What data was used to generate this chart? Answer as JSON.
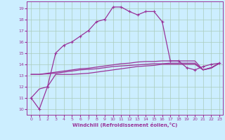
{
  "xlabel": "Windchill (Refroidissement éolien,°C)",
  "bg_color": "#cceeff",
  "line_color": "#993399",
  "grid_color": "#aaccbb",
  "xlim": [
    -0.5,
    23.4
  ],
  "ylim": [
    9.5,
    19.6
  ],
  "yticks": [
    10,
    11,
    12,
    13,
    14,
    15,
    16,
    17,
    18,
    19
  ],
  "xticks": [
    0,
    1,
    2,
    3,
    4,
    5,
    6,
    7,
    8,
    9,
    10,
    11,
    12,
    13,
    14,
    15,
    16,
    17,
    18,
    19,
    20,
    21,
    22,
    23
  ],
  "line1_x": [
    0,
    1,
    2,
    3,
    4,
    5,
    6,
    7,
    8,
    9,
    10,
    11,
    12,
    13,
    14,
    15,
    16,
    17,
    18,
    19,
    20,
    21,
    22,
    23
  ],
  "line1_y": [
    11.0,
    10.0,
    12.0,
    15.0,
    15.7,
    16.0,
    16.5,
    17.0,
    17.8,
    18.0,
    19.1,
    19.1,
    18.7,
    18.4,
    18.7,
    18.7,
    17.8,
    14.3,
    14.3,
    13.7,
    13.5,
    13.8,
    14.0,
    14.1
  ],
  "line2_x": [
    0,
    1,
    2,
    3,
    4,
    5,
    6,
    7,
    8,
    9,
    10,
    11,
    12,
    13,
    14,
    15,
    16,
    17,
    18,
    19,
    20,
    21,
    22,
    23
  ],
  "line2_y": [
    13.1,
    13.1,
    13.15,
    13.2,
    13.3,
    13.4,
    13.5,
    13.55,
    13.6,
    13.7,
    13.8,
    13.85,
    13.9,
    13.95,
    14.0,
    14.05,
    14.05,
    14.1,
    14.1,
    14.1,
    14.1,
    13.5,
    13.7,
    14.1
  ],
  "line3_x": [
    0,
    1,
    2,
    3,
    4,
    5,
    6,
    7,
    8,
    9,
    10,
    11,
    12,
    13,
    14,
    15,
    16,
    17,
    18,
    19,
    20,
    21,
    22,
    23
  ],
  "line3_y": [
    13.1,
    13.1,
    13.2,
    13.3,
    13.4,
    13.5,
    13.6,
    13.65,
    13.75,
    13.85,
    13.95,
    14.05,
    14.1,
    14.2,
    14.25,
    14.25,
    14.3,
    14.3,
    14.3,
    14.3,
    14.3,
    13.5,
    13.7,
    14.1
  ],
  "line4_x": [
    0,
    1,
    2,
    3,
    4,
    5,
    6,
    7,
    8,
    9,
    10,
    11,
    12,
    13,
    14,
    15,
    16,
    17,
    18,
    19,
    20,
    21,
    22,
    23
  ],
  "line4_y": [
    11.0,
    11.8,
    12.0,
    13.1,
    13.1,
    13.1,
    13.15,
    13.2,
    13.3,
    13.4,
    13.5,
    13.6,
    13.7,
    13.8,
    13.85,
    13.9,
    14.0,
    14.0,
    14.0,
    14.0,
    14.0,
    13.5,
    13.65,
    14.1
  ]
}
